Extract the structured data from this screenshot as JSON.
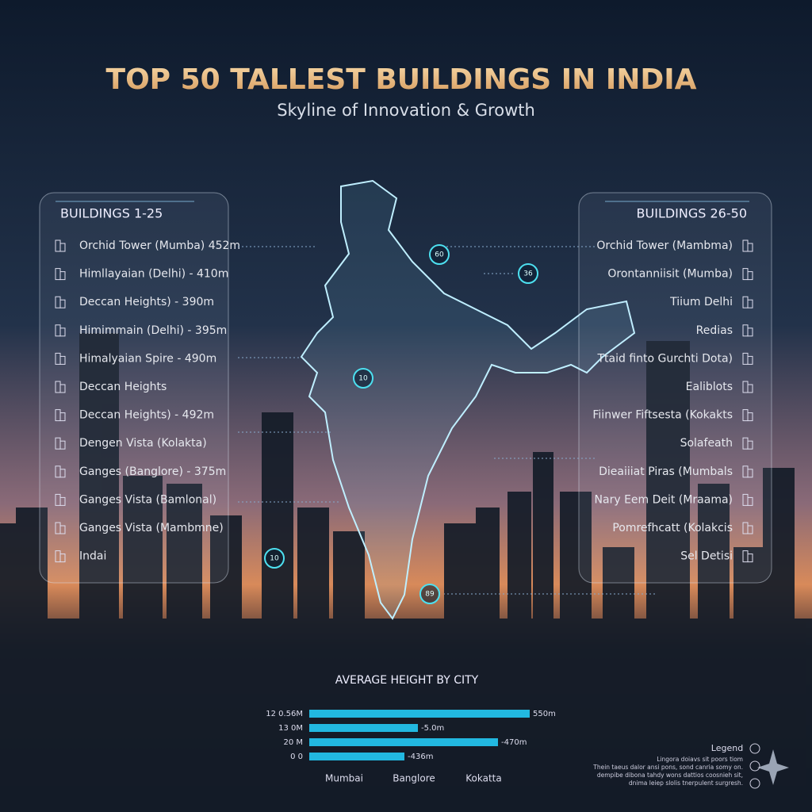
{
  "header": {
    "title": "TOP 50 TALLEST BUILDINGS IN INDIA",
    "subtitle": "Skyline of Innovation & Growth"
  },
  "left_panel": {
    "heading": "BUILDINGS 1-25",
    "items": [
      "Orchid Tower (Mumba) 452m",
      "Himllayaian (Delhi) - 410m",
      "Deccan Heights) - 390m",
      "Himimmain (Delhi) - 395m",
      "Himalyaian Spire - 490m",
      "Deccan Heights",
      "Deccan Heights) - 492m",
      "Dengen Vista (Kolakta)",
      "Ganges (Banglore) - 375m",
      "Ganges Vista (Bamlonal)",
      "Ganges Vista (Mambmne)",
      "Indai"
    ]
  },
  "right_panel": {
    "heading": "BUILDINGS 26-50",
    "items": [
      "Orchid Tower (Mambma)",
      "Orontanniisit (Mumba)",
      "Tiium Delhi",
      "Redias",
      "Ttaid finto Gurchti Dota)",
      "Ealiblots",
      "Fiinwer Fiftsesta (Kokakts",
      "Solafeath",
      "Dieaiiiat Piras (Mumbals",
      "Nary Eem Deit (Mraama)",
      "Pomrefhcatt (Kolakcis",
      "Sel Detisi"
    ]
  },
  "map": {
    "markers": [
      "60",
      "36",
      "10",
      "10",
      "89"
    ]
  },
  "bar_chart": {
    "title": "AVERAGE HEIGHT BY CITY",
    "row_labels": [
      "12 0.56M",
      "13 0M",
      "20 M",
      "0 0"
    ],
    "value_labels": [
      "550m",
      "-5.0m",
      "-470m",
      "-436m"
    ],
    "categories": [
      "Mumbai",
      "Banglore",
      "Kokatta"
    ]
  },
  "legend": {
    "title": "Legend",
    "lines": [
      "Lingora doiavs sit poors tiom",
      "Thein taeus dalor ansi pons, sond canria somy on.",
      "dempibe dibona tahdy wons dattios coosnieh sit,",
      "dnima leiep slolis tnerpulent surgresh."
    ]
  }
}
